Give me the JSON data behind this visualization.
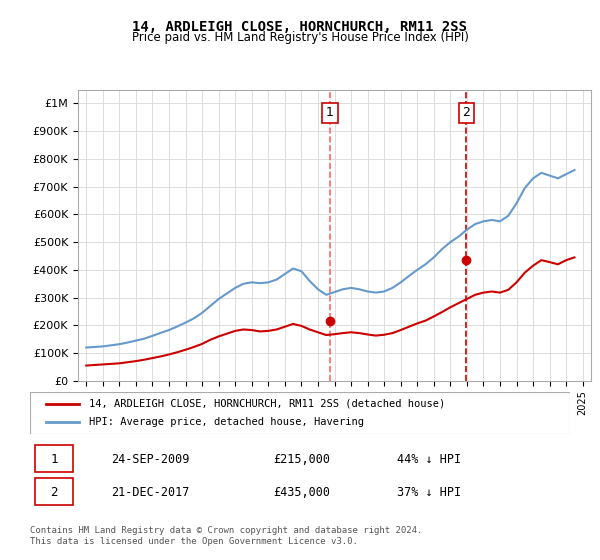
{
  "title": "14, ARDLEIGH CLOSE, HORNCHURCH, RM11 2SS",
  "subtitle": "Price paid vs. HM Land Registry's House Price Index (HPI)",
  "footer": "Contains HM Land Registry data © Crown copyright and database right 2024.\nThis data is licensed under the Open Government Licence v3.0.",
  "legend_label_red": "14, ARDLEIGH CLOSE, HORNCHURCH, RM11 2SS (detached house)",
  "legend_label_blue": "HPI: Average price, detached house, Havering",
  "annotation1_label": "1",
  "annotation1_date": "24-SEP-2009",
  "annotation1_price": "£215,000",
  "annotation1_pct": "44% ↓ HPI",
  "annotation2_label": "2",
  "annotation2_date": "21-DEC-2017",
  "annotation2_price": "£435,000",
  "annotation2_pct": "37% ↓ HPI",
  "ylim": [
    0,
    1050000
  ],
  "yticks": [
    0,
    100000,
    200000,
    300000,
    400000,
    500000,
    600000,
    700000,
    800000,
    900000,
    1000000
  ],
  "hpi_color": "#6699cc",
  "price_color": "#cc0000",
  "vline1_color": "#ff6666",
  "vline2_color": "#cc0000",
  "marker1_color": "#cc0000",
  "marker2_color": "#cc0000",
  "hpi_x": [
    1995.0,
    1995.5,
    1996.0,
    1996.5,
    1997.0,
    1997.5,
    1998.0,
    1998.5,
    1999.0,
    1999.5,
    2000.0,
    2000.5,
    2001.0,
    2001.5,
    2002.0,
    2002.5,
    2003.0,
    2003.5,
    2004.0,
    2004.5,
    2005.0,
    2005.5,
    2006.0,
    2006.5,
    2007.0,
    2007.5,
    2008.0,
    2008.5,
    2009.0,
    2009.5,
    2010.0,
    2010.5,
    2011.0,
    2011.5,
    2012.0,
    2012.5,
    2013.0,
    2013.5,
    2014.0,
    2014.5,
    2015.0,
    2015.5,
    2016.0,
    2016.5,
    2017.0,
    2017.5,
    2018.0,
    2018.5,
    2019.0,
    2019.5,
    2020.0,
    2020.5,
    2021.0,
    2021.5,
    2022.0,
    2022.5,
    2023.0,
    2023.5,
    2024.0,
    2024.5
  ],
  "hpi_y": [
    120000,
    122000,
    124000,
    128000,
    132000,
    138000,
    145000,
    152000,
    162000,
    173000,
    183000,
    196000,
    210000,
    225000,
    245000,
    270000,
    295000,
    315000,
    335000,
    350000,
    355000,
    352000,
    355000,
    365000,
    385000,
    405000,
    395000,
    360000,
    330000,
    310000,
    320000,
    330000,
    335000,
    330000,
    322000,
    318000,
    322000,
    335000,
    355000,
    378000,
    400000,
    420000,
    445000,
    475000,
    500000,
    520000,
    545000,
    565000,
    575000,
    580000,
    575000,
    595000,
    640000,
    695000,
    730000,
    750000,
    740000,
    730000,
    745000,
    760000
  ],
  "price_x": [
    1995.0,
    1995.5,
    1996.0,
    1996.5,
    1997.0,
    1997.5,
    1998.0,
    1998.5,
    1999.0,
    1999.5,
    2000.0,
    2000.5,
    2001.0,
    2001.5,
    2002.0,
    2002.5,
    2003.0,
    2003.5,
    2004.0,
    2004.5,
    2005.0,
    2005.5,
    2006.0,
    2006.5,
    2007.0,
    2007.5,
    2008.0,
    2008.5,
    2009.0,
    2009.5,
    2010.0,
    2010.5,
    2011.0,
    2011.5,
    2012.0,
    2012.5,
    2013.0,
    2013.5,
    2014.0,
    2014.5,
    2015.0,
    2015.5,
    2016.0,
    2016.5,
    2017.0,
    2017.5,
    2018.0,
    2018.5,
    2019.0,
    2019.5,
    2020.0,
    2020.5,
    2021.0,
    2021.5,
    2022.0,
    2022.5,
    2023.0,
    2023.5,
    2024.0,
    2024.5
  ],
  "price_y": [
    55000,
    57000,
    59000,
    61000,
    63000,
    67000,
    71000,
    76000,
    82000,
    88000,
    95000,
    103000,
    112000,
    122000,
    133000,
    148000,
    160000,
    170000,
    180000,
    185000,
    183000,
    178000,
    180000,
    185000,
    195000,
    205000,
    198000,
    185000,
    175000,
    165000,
    168000,
    172000,
    175000,
    172000,
    167000,
    163000,
    166000,
    172000,
    183000,
    195000,
    207000,
    217000,
    232000,
    248000,
    265000,
    280000,
    295000,
    310000,
    318000,
    322000,
    318000,
    328000,
    355000,
    390000,
    415000,
    435000,
    428000,
    420000,
    435000,
    445000
  ],
  "sale1_x": 2009.73,
  "sale1_y": 215000,
  "sale2_x": 2017.97,
  "sale2_y": 435000,
  "xlim": [
    1994.5,
    2025.5
  ],
  "xtick_years": [
    1995,
    1996,
    1997,
    1998,
    1999,
    2000,
    2001,
    2002,
    2003,
    2004,
    2005,
    2006,
    2007,
    2008,
    2009,
    2010,
    2011,
    2012,
    2013,
    2014,
    2015,
    2016,
    2017,
    2018,
    2019,
    2020,
    2021,
    2022,
    2023,
    2024,
    2025
  ]
}
